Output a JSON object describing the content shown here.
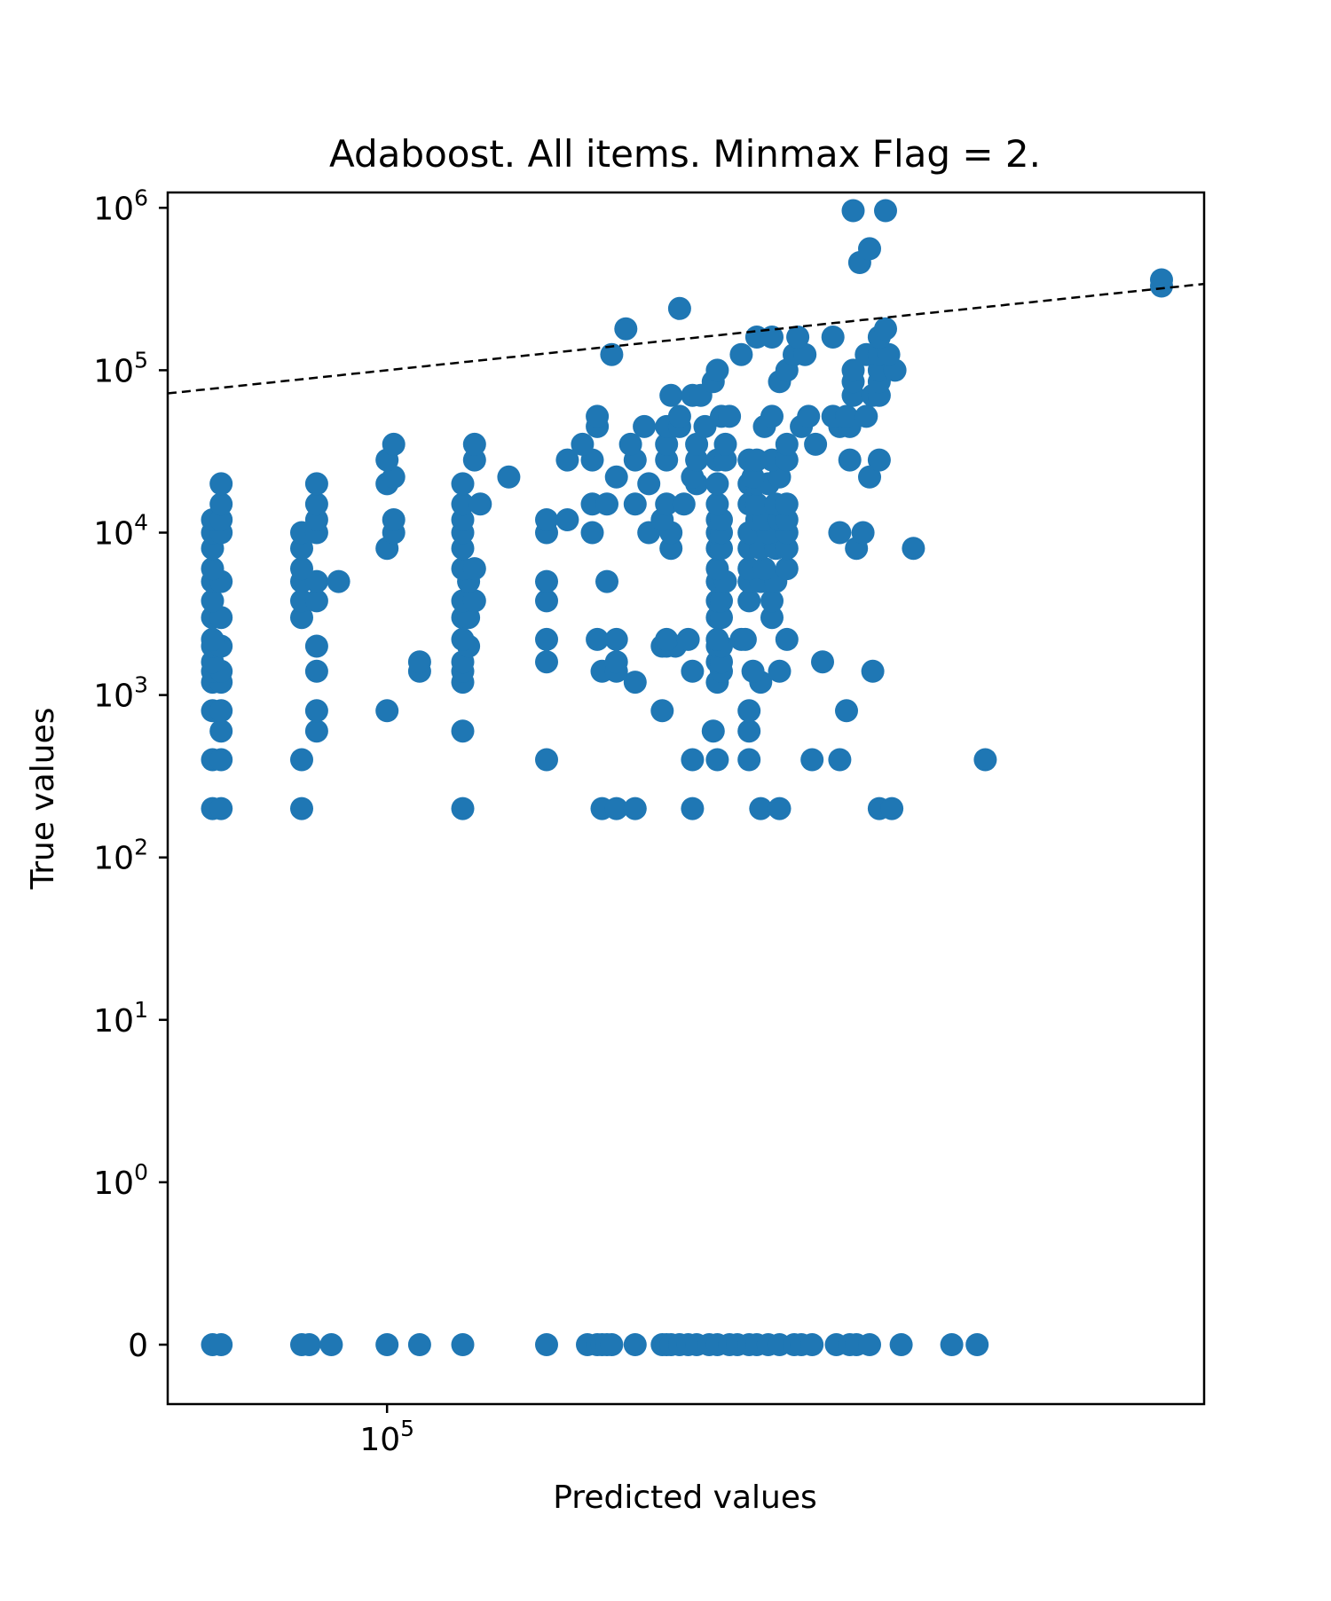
{
  "chart_data": {
    "type": "scatter",
    "title": "Adaboost. All items. Minmax Flag = 2.",
    "xlabel": "Predicted values",
    "ylabel": "True values",
    "xscale": "log",
    "yscale": "symlog",
    "xlim": [
      72000,
      340000
    ],
    "ylim": [
      -0.6,
      2000000
    ],
    "grid": false,
    "legend": "none",
    "x_ticks": [
      {
        "value": 100000,
        "base": "10",
        "exp": "5"
      }
    ],
    "y_ticks": [
      {
        "value": 0,
        "base": "0",
        "exp": ""
      },
      {
        "value": 1,
        "base": "10",
        "exp": "0"
      },
      {
        "value": 10,
        "base": "10",
        "exp": "1"
      },
      {
        "value": 100,
        "base": "10",
        "exp": "2"
      },
      {
        "value": 1000,
        "base": "10",
        "exp": "3"
      },
      {
        "value": 10000,
        "base": "10",
        "exp": "4"
      },
      {
        "value": 100000,
        "base": "10",
        "exp": "5"
      },
      {
        "value": 1000000,
        "base": "10",
        "exp": "6"
      }
    ],
    "reference_line": {
      "style": "dashed",
      "color": "#000000",
      "label": ""
    },
    "marker_color": "#1f77b4",
    "points": [
      [
        77000,
        0
      ],
      [
        78000,
        0
      ],
      [
        88000,
        0
      ],
      [
        89000,
        0
      ],
      [
        92000,
        0
      ],
      [
        100000,
        0
      ],
      [
        105000,
        0
      ],
      [
        112000,
        0
      ],
      [
        127000,
        0
      ],
      [
        135000,
        0
      ],
      [
        137000,
        0
      ],
      [
        138000,
        0
      ],
      [
        139000,
        0
      ],
      [
        140000,
        0
      ],
      [
        145000,
        0
      ],
      [
        151000,
        0
      ],
      [
        152000,
        0
      ],
      [
        153000,
        0
      ],
      [
        155000,
        0
      ],
      [
        157000,
        0
      ],
      [
        159000,
        0
      ],
      [
        162000,
        0
      ],
      [
        164000,
        0
      ],
      [
        167000,
        0
      ],
      [
        169000,
        0
      ],
      [
        172000,
        0
      ],
      [
        174000,
        0
      ],
      [
        177000,
        0
      ],
      [
        180000,
        0
      ],
      [
        184000,
        0
      ],
      [
        186000,
        0
      ],
      [
        189000,
        0
      ],
      [
        196000,
        0
      ],
      [
        200000,
        0
      ],
      [
        202000,
        0
      ],
      [
        206000,
        0
      ],
      [
        216000,
        0
      ],
      [
        233000,
        0
      ],
      [
        242000,
        0
      ],
      [
        77000,
        200
      ],
      [
        78000,
        200
      ],
      [
        88000,
        200
      ],
      [
        112000,
        200
      ],
      [
        138000,
        200
      ],
      [
        141000,
        200
      ],
      [
        145000,
        200
      ],
      [
        158000,
        200
      ],
      [
        175000,
        200
      ],
      [
        180000,
        200
      ],
      [
        209000,
        200
      ],
      [
        213000,
        200
      ],
      [
        77000,
        400
      ],
      [
        78000,
        400
      ],
      [
        88000,
        400
      ],
      [
        127000,
        400
      ],
      [
        158000,
        400
      ],
      [
        164000,
        400
      ],
      [
        172000,
        400
      ],
      [
        189000,
        400
      ],
      [
        197000,
        400
      ],
      [
        245000,
        400
      ],
      [
        78000,
        600
      ],
      [
        90000,
        600
      ],
      [
        112000,
        600
      ],
      [
        163000,
        600
      ],
      [
        172000,
        600
      ],
      [
        77000,
        800
      ],
      [
        78000,
        800
      ],
      [
        90000,
        800
      ],
      [
        100000,
        800
      ],
      [
        151000,
        800
      ],
      [
        172000,
        800
      ],
      [
        199000,
        800
      ],
      [
        77000,
        1200
      ],
      [
        78000,
        1200
      ],
      [
        112000,
        1200
      ],
      [
        145000,
        1200
      ],
      [
        164000,
        1200
      ],
      [
        175000,
        1200
      ],
      [
        77000,
        1400
      ],
      [
        78000,
        1400
      ],
      [
        90000,
        1400
      ],
      [
        105000,
        1400
      ],
      [
        112000,
        1400
      ],
      [
        138000,
        1400
      ],
      [
        141000,
        1400
      ],
      [
        158000,
        1400
      ],
      [
        165000,
        1400
      ],
      [
        173000,
        1400
      ],
      [
        180000,
        1400
      ],
      [
        207000,
        1400
      ],
      [
        77000,
        1600
      ],
      [
        105000,
        1600
      ],
      [
        112000,
        1600
      ],
      [
        127000,
        1600
      ],
      [
        141000,
        1600
      ],
      [
        164000,
        1600
      ],
      [
        165000,
        1600
      ],
      [
        192000,
        1600
      ],
      [
        77000,
        2000
      ],
      [
        78000,
        2000
      ],
      [
        90000,
        2000
      ],
      [
        113000,
        2000
      ],
      [
        151000,
        2000
      ],
      [
        152000,
        2000
      ],
      [
        154000,
        2000
      ],
      [
        164000,
        2000
      ],
      [
        165000,
        2000
      ],
      [
        77000,
        2200
      ],
      [
        112000,
        2200
      ],
      [
        127000,
        2200
      ],
      [
        137000,
        2200
      ],
      [
        141000,
        2200
      ],
      [
        152000,
        2200
      ],
      [
        157000,
        2200
      ],
      [
        164000,
        2200
      ],
      [
        170000,
        2200
      ],
      [
        171000,
        2200
      ],
      [
        182000,
        2200
      ],
      [
        77000,
        3000
      ],
      [
        78000,
        3000
      ],
      [
        88000,
        3000
      ],
      [
        112000,
        3000
      ],
      [
        113000,
        3000
      ],
      [
        164000,
        3000
      ],
      [
        165000,
        3000
      ],
      [
        178000,
        3000
      ],
      [
        77000,
        3800
      ],
      [
        88000,
        3800
      ],
      [
        90000,
        3800
      ],
      [
        112000,
        3800
      ],
      [
        114000,
        3800
      ],
      [
        127000,
        3800
      ],
      [
        164000,
        3800
      ],
      [
        165000,
        3800
      ],
      [
        172000,
        3800
      ],
      [
        178000,
        3800
      ],
      [
        77000,
        5000
      ],
      [
        78000,
        5000
      ],
      [
        88000,
        5000
      ],
      [
        90000,
        5000
      ],
      [
        93000,
        5000
      ],
      [
        113000,
        5000
      ],
      [
        127000,
        5000
      ],
      [
        139000,
        5000
      ],
      [
        164000,
        5000
      ],
      [
        166000,
        5000
      ],
      [
        172000,
        5000
      ],
      [
        175000,
        5000
      ],
      [
        179000,
        5000
      ],
      [
        77000,
        6000
      ],
      [
        88000,
        6000
      ],
      [
        112000,
        6000
      ],
      [
        114000,
        6000
      ],
      [
        164000,
        6000
      ],
      [
        172000,
        6000
      ],
      [
        176000,
        6000
      ],
      [
        182000,
        6000
      ],
      [
        77000,
        8000
      ],
      [
        88000,
        8000
      ],
      [
        100000,
        8000
      ],
      [
        112000,
        8000
      ],
      [
        153000,
        8000
      ],
      [
        164000,
        8000
      ],
      [
        165000,
        8000
      ],
      [
        172000,
        8000
      ],
      [
        175000,
        8000
      ],
      [
        179000,
        8000
      ],
      [
        182000,
        8000
      ],
      [
        202000,
        8000
      ],
      [
        220000,
        8000
      ],
      [
        77000,
        10000
      ],
      [
        78000,
        10000
      ],
      [
        88000,
        10000
      ],
      [
        90000,
        10000
      ],
      [
        101000,
        10000
      ],
      [
        112000,
        10000
      ],
      [
        127000,
        10000
      ],
      [
        136000,
        10000
      ],
      [
        148000,
        10000
      ],
      [
        153000,
        10000
      ],
      [
        164000,
        10000
      ],
      [
        165000,
        10000
      ],
      [
        172000,
        10000
      ],
      [
        177000,
        10000
      ],
      [
        182000,
        10000
      ],
      [
        197000,
        10000
      ],
      [
        204000,
        10000
      ],
      [
        77000,
        12000
      ],
      [
        78000,
        12000
      ],
      [
        90000,
        12000
      ],
      [
        101000,
        12000
      ],
      [
        112000,
        12000
      ],
      [
        127000,
        12000
      ],
      [
        131000,
        12000
      ],
      [
        151000,
        12000
      ],
      [
        164000,
        12000
      ],
      [
        165000,
        12000
      ],
      [
        174000,
        12000
      ],
      [
        176000,
        12000
      ],
      [
        180000,
        12000
      ],
      [
        182000,
        12000
      ],
      [
        78000,
        15000
      ],
      [
        90000,
        15000
      ],
      [
        112000,
        15000
      ],
      [
        115000,
        15000
      ],
      [
        136000,
        15000
      ],
      [
        139000,
        15000
      ],
      [
        145000,
        15000
      ],
      [
        152000,
        15000
      ],
      [
        156000,
        15000
      ],
      [
        164000,
        15000
      ],
      [
        172000,
        15000
      ],
      [
        174000,
        15000
      ],
      [
        179000,
        15000
      ],
      [
        182000,
        15000
      ],
      [
        78000,
        20000
      ],
      [
        90000,
        20000
      ],
      [
        100000,
        20000
      ],
      [
        112000,
        20000
      ],
      [
        148000,
        20000
      ],
      [
        159000,
        20000
      ],
      [
        164000,
        20000
      ],
      [
        172000,
        20000
      ],
      [
        174000,
        20000
      ],
      [
        177000,
        20000
      ],
      [
        101000,
        22000
      ],
      [
        120000,
        22000
      ],
      [
        141000,
        22000
      ],
      [
        158000,
        22000
      ],
      [
        173000,
        22000
      ],
      [
        180000,
        22000
      ],
      [
        206000,
        22000
      ],
      [
        100000,
        28000
      ],
      [
        114000,
        28000
      ],
      [
        131000,
        28000
      ],
      [
        136000,
        28000
      ],
      [
        145000,
        28000
      ],
      [
        152000,
        28000
      ],
      [
        159000,
        28000
      ],
      [
        164000,
        28000
      ],
      [
        166000,
        28000
      ],
      [
        172000,
        28000
      ],
      [
        174000,
        28000
      ],
      [
        178000,
        28000
      ],
      [
        182000,
        28000
      ],
      [
        200000,
        28000
      ],
      [
        209000,
        28000
      ],
      [
        101000,
        35000
      ],
      [
        114000,
        35000
      ],
      [
        134000,
        35000
      ],
      [
        144000,
        35000
      ],
      [
        152000,
        35000
      ],
      [
        159000,
        35000
      ],
      [
        166000,
        35000
      ],
      [
        182000,
        35000
      ],
      [
        190000,
        35000
      ],
      [
        137000,
        45000
      ],
      [
        147000,
        45000
      ],
      [
        152000,
        45000
      ],
      [
        155000,
        45000
      ],
      [
        161000,
        45000
      ],
      [
        176000,
        45000
      ],
      [
        186000,
        45000
      ],
      [
        197000,
        45000
      ],
      [
        200000,
        45000
      ],
      [
        137000,
        52000
      ],
      [
        155000,
        52000
      ],
      [
        165000,
        52000
      ],
      [
        167000,
        52000
      ],
      [
        178000,
        52000
      ],
      [
        188000,
        52000
      ],
      [
        195000,
        52000
      ],
      [
        199000,
        52000
      ],
      [
        205000,
        52000
      ],
      [
        153000,
        70000
      ],
      [
        158000,
        70000
      ],
      [
        160000,
        70000
      ],
      [
        201000,
        70000
      ],
      [
        207000,
        70000
      ],
      [
        209000,
        70000
      ],
      [
        163000,
        85000
      ],
      [
        180000,
        85000
      ],
      [
        201000,
        85000
      ],
      [
        209000,
        85000
      ],
      [
        164000,
        100000
      ],
      [
        182000,
        100000
      ],
      [
        201000,
        100000
      ],
      [
        209000,
        100000
      ],
      [
        214000,
        100000
      ],
      [
        140000,
        125000
      ],
      [
        170000,
        125000
      ],
      [
        184000,
        125000
      ],
      [
        187000,
        125000
      ],
      [
        205000,
        125000
      ],
      [
        209000,
        125000
      ],
      [
        212000,
        125000
      ],
      [
        174000,
        160000
      ],
      [
        178000,
        160000
      ],
      [
        185000,
        160000
      ],
      [
        195000,
        160000
      ],
      [
        209000,
        160000
      ],
      [
        143000,
        180000
      ],
      [
        155000,
        240000
      ],
      [
        211000,
        180000
      ],
      [
        203000,
        460000
      ],
      [
        206000,
        560000
      ],
      [
        201000,
        960000
      ],
      [
        211000,
        960000
      ],
      [
        319000,
        330000
      ],
      [
        319000,
        360000
      ]
    ]
  }
}
